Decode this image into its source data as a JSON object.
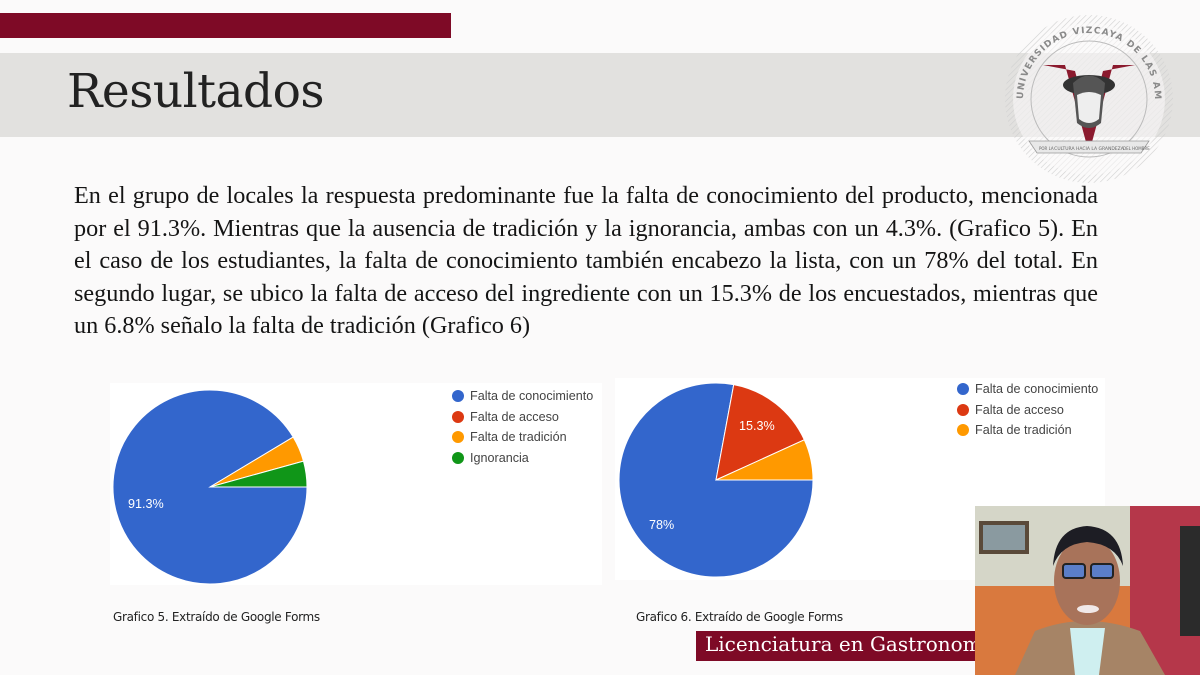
{
  "slide": {
    "title": "Resultados",
    "accent_color": "#7e0a26",
    "logo": {
      "icon": "university-seal-icon",
      "ring_text": "UNIVERSIDAD VIZCAYA DE LAS AMÉRICAS",
      "ribbon_left": "POR LA",
      "ribbon_center": "CULTURA HACIA LA GRANDEZA",
      "ribbon_right": "DEL HOMBRE"
    },
    "paragraph": "En el grupo de locales la respuesta predominante fue la falta de conocimiento del producto, mencionada por el 91.3%. Mientras que la ausencia de tradición y la ignorancia, ambas con un 4.3%. (Grafico 5). En el caso de los estudiantes, la falta de conocimiento también encabezo la lista, con un 78% del total. En segundo lugar, se ubico la falta de acceso del ingrediente con un 15.3% de los encuestados, mientras que un 6.8% señalo la falta de tradición (Grafico 6)",
    "captions": {
      "chart5": "Grafico 5. Extraído de Google Forms",
      "chart6": "Grafico 6. Extraído de Google Forms"
    },
    "banner": "Licenciatura en Gastronomía",
    "webcam": {
      "icon": "presenter-video-icon"
    }
  },
  "chart_data": [
    {
      "type": "pie",
      "title": "Grafico 5. Extraído de Google Forms",
      "categories": [
        "Falta de conocimiento",
        "Falta de acceso",
        "Falta de tradición",
        "Ignorancia"
      ],
      "values": [
        91.3,
        0,
        4.3,
        4.3
      ],
      "colors": [
        "#3366cc",
        "#dc3912",
        "#ff9900",
        "#109618"
      ],
      "slice_labels": [
        "91.3%",
        "",
        "",
        ""
      ],
      "legend_position": "right"
    },
    {
      "type": "pie",
      "title": "Grafico 6. Extraído de Google Forms",
      "categories": [
        "Falta de conocimiento",
        "Falta de acceso",
        "Falta de tradición"
      ],
      "values": [
        78,
        15.3,
        6.8
      ],
      "colors": [
        "#3366cc",
        "#dc3912",
        "#ff9900"
      ],
      "slice_labels": [
        "78%",
        "15.3%",
        ""
      ],
      "legend_position": "right"
    }
  ]
}
